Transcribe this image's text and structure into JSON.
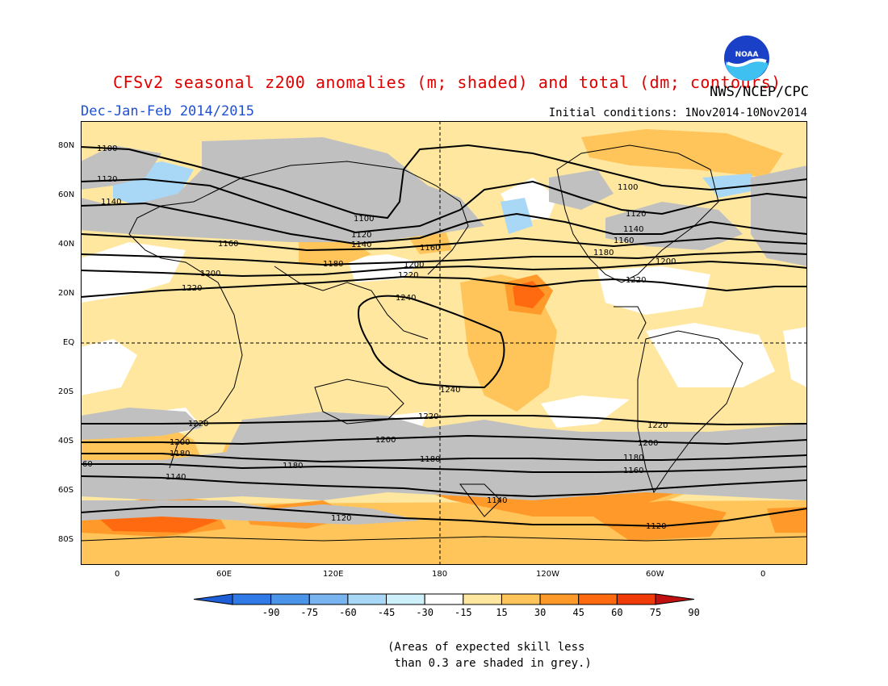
{
  "title": "CFSv2 seasonal z200 anomalies (m; shaded) and total (dm; contours)",
  "season_label": "Dec-Jan-Feb 2014/2015",
  "initial_conditions": "Initial conditions: 1Nov2014-10Nov2014",
  "agency": "NWS/NCEP/CPC",
  "logo_text": "NOAA",
  "colors": {
    "title": "#e00000",
    "season": "#2050d0",
    "land_outline": "#000000",
    "skill_grey": "#c0c0c0"
  },
  "lat_labels": [
    "80N",
    "60N",
    "40N",
    "20N",
    "EQ",
    "20S",
    "40S",
    "60S",
    "80S"
  ],
  "lon_labels": [
    "0",
    "60E",
    "120E",
    "180",
    "120W",
    "60W",
    "0"
  ],
  "contour_labels": {
    "c1100": "1100",
    "c1120": "1120",
    "c1140": "1140",
    "c1160": "1160",
    "c1180": "1180",
    "c1200": "1200",
    "c1220": "1220",
    "c1240": "1240",
    "c60": "60"
  },
  "colorbar": {
    "ticks": [
      "-90",
      "-75",
      "-60",
      "-45",
      "-30",
      "-15",
      "15",
      "30",
      "45",
      "60",
      "75",
      "90"
    ],
    "colors": [
      "#1e5fd8",
      "#2f7ae6",
      "#4a95ea",
      "#78b4f0",
      "#a8d8f6",
      "#cdf0fa",
      "#ffffff",
      "#ffe7a0",
      "#ffc55a",
      "#ff9a2a",
      "#ff6a10",
      "#f03a08",
      "#c01010"
    ]
  },
  "note": "(Areas of expected skill less\n than 0.3 are shaded in grey.)"
}
